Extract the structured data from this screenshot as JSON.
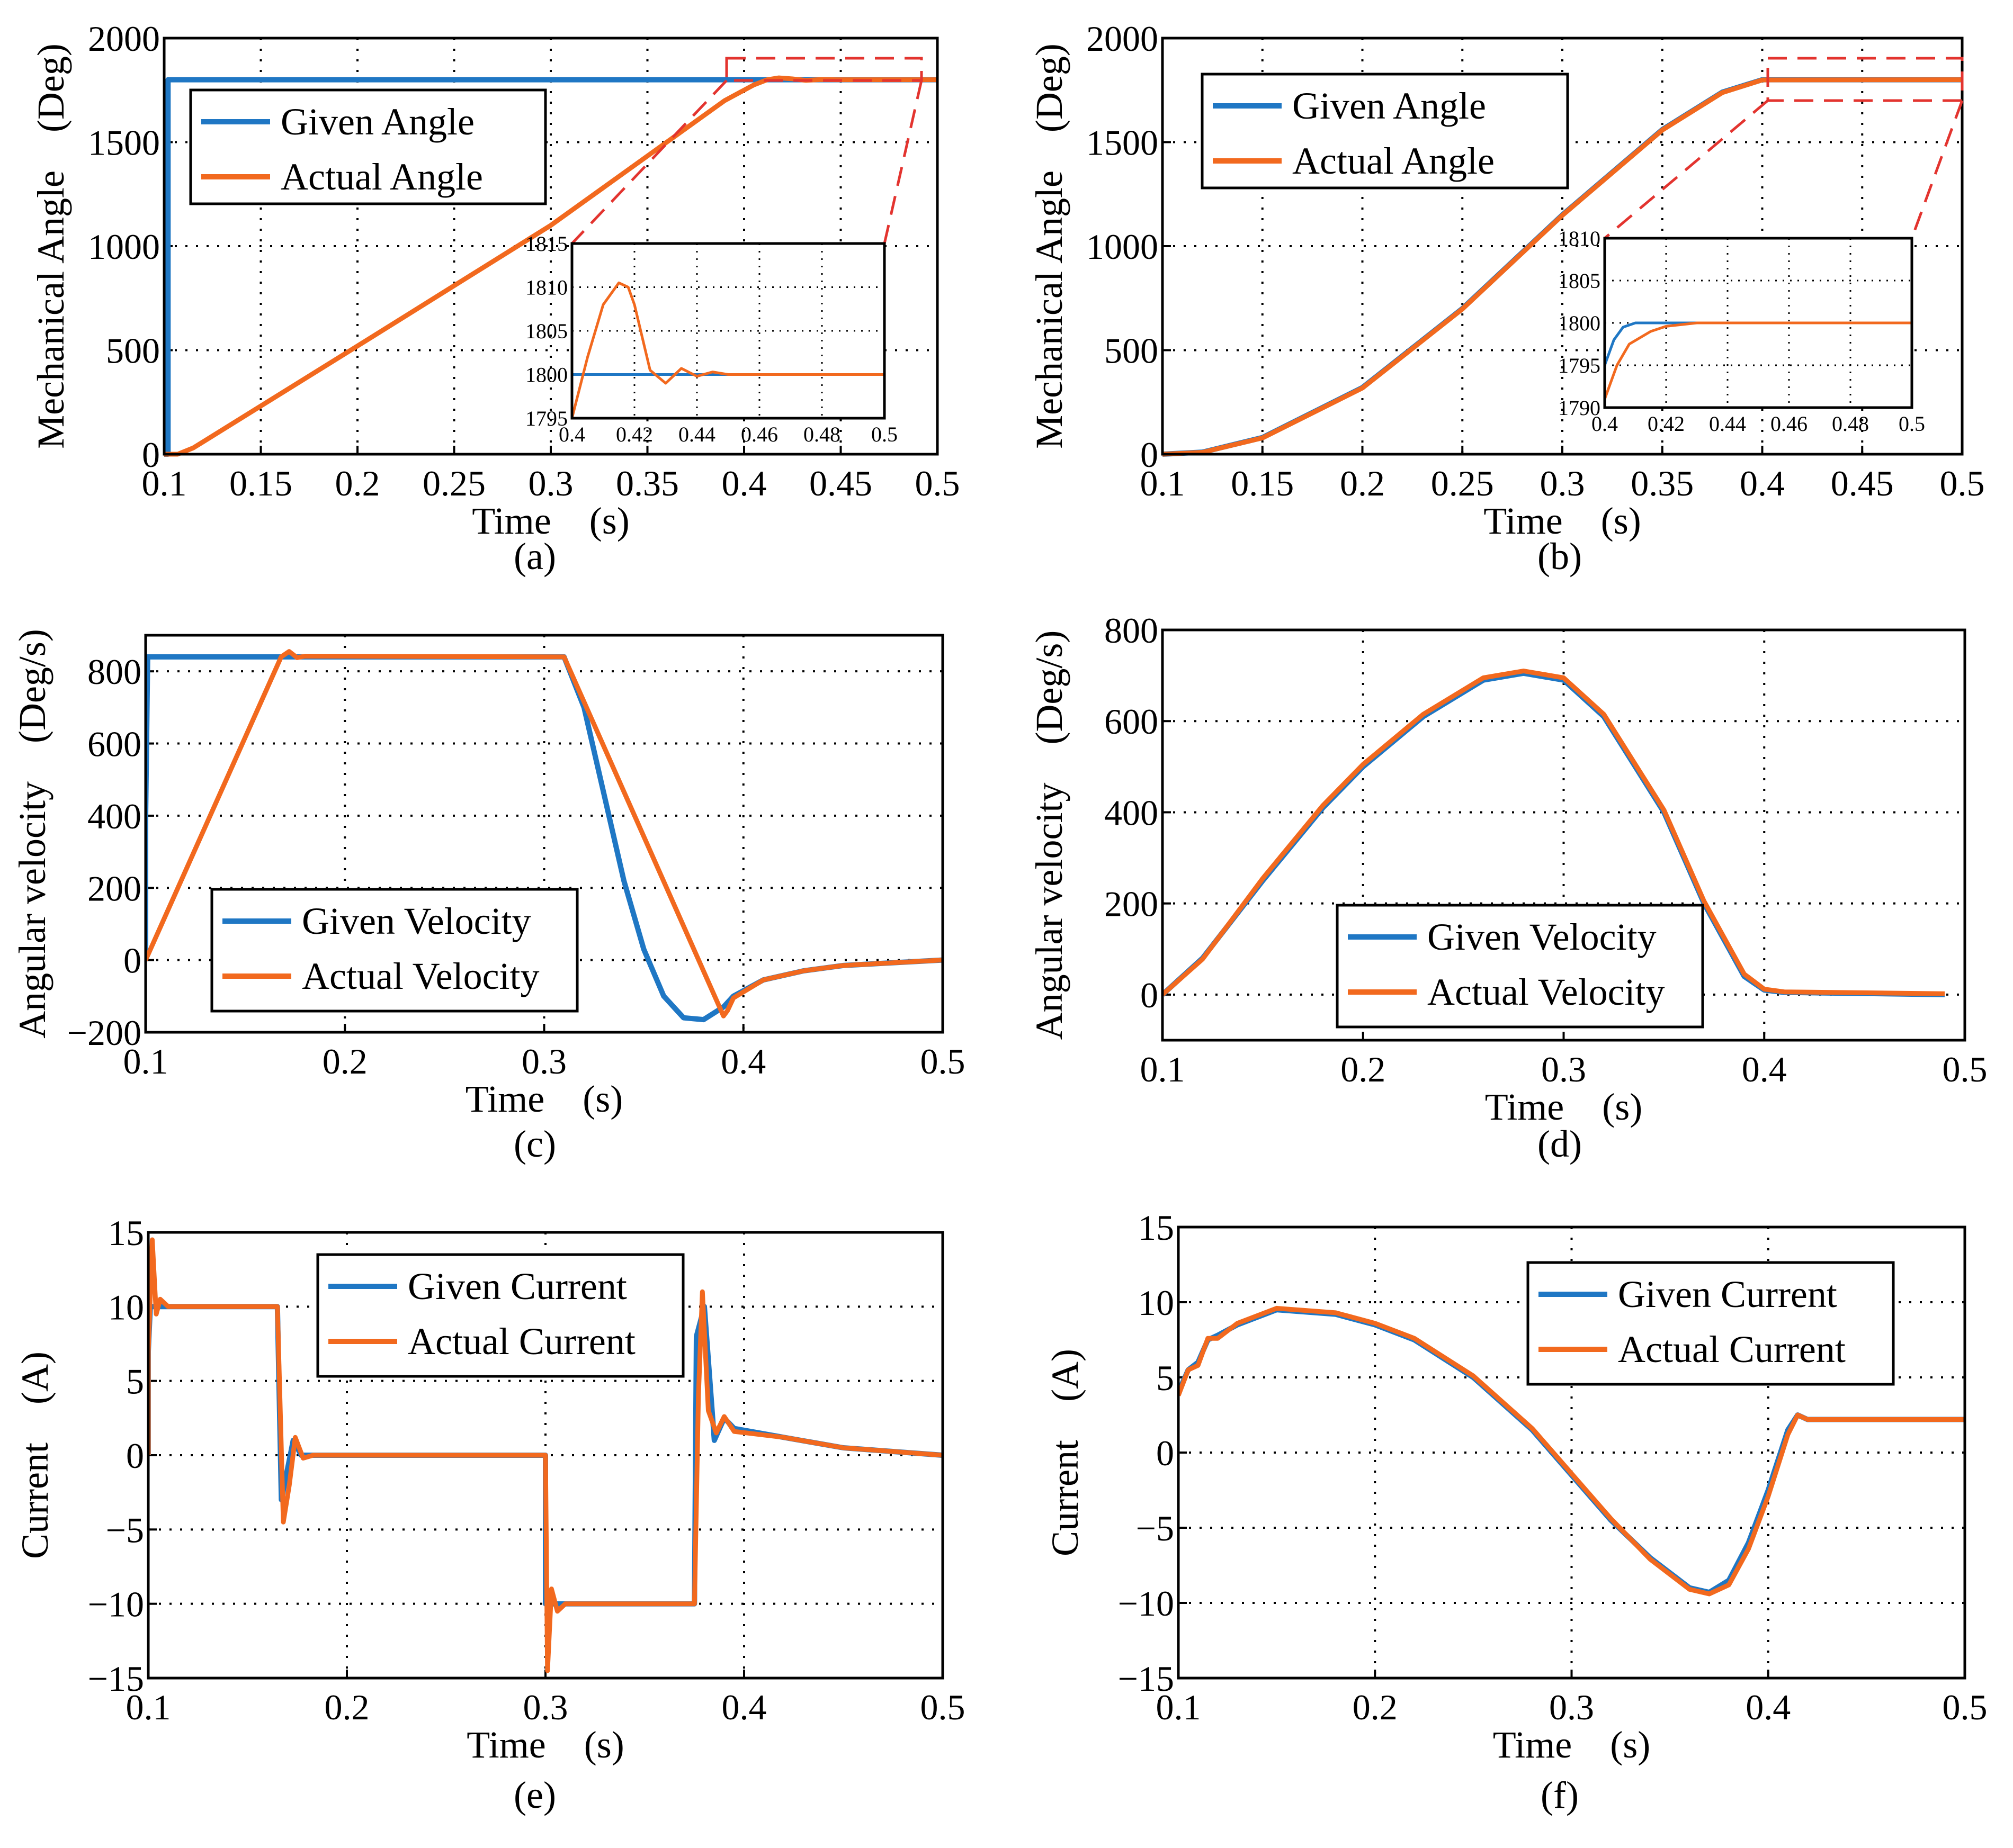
{
  "colors": {
    "given": "#1f77c4",
    "actual": "#f2691e",
    "zoom": "#e3342f"
  },
  "chart_data": [
    {
      "id": "a",
      "type": "line",
      "caption": "(a)",
      "xlabel": "Time　(s)",
      "ylabel": "Mechanical Angle　(Deg)",
      "xlim": [
        0.1,
        0.5
      ],
      "ylim": [
        0,
        2000
      ],
      "xticks": [
        "0.1",
        "0.15",
        "0.2",
        "0.25",
        "0.3",
        "0.35",
        "0.4",
        "0.45",
        "0.5"
      ],
      "yticks": [
        "0",
        "500",
        "1000",
        "1500",
        "2000"
      ],
      "legend": [
        "Given Angle",
        "Actual Angle"
      ],
      "series": [
        {
          "name": "Given Angle",
          "x": [
            0.1,
            0.102,
            0.102,
            0.5
          ],
          "y": [
            0,
            0,
            1800,
            1800
          ]
        },
        {
          "name": "Actual Angle",
          "x": [
            0.1,
            0.107,
            0.115,
            0.2,
            0.3,
            0.39,
            0.405,
            0.412,
            0.418,
            0.425,
            0.432,
            0.44,
            0.448,
            0.5
          ],
          "y": [
            0,
            0,
            30,
            520,
            1100,
            1700,
            1775,
            1800,
            1809,
            1804,
            1797,
            1801,
            1800,
            1800
          ]
        }
      ],
      "inset": {
        "xlim": [
          0.4,
          0.5
        ],
        "ylim": [
          1795,
          1815
        ],
        "xticks": [
          "0.4",
          "0.42",
          "0.44",
          "0.46",
          "0.48",
          "0.5"
        ],
        "yticks": [
          "1795",
          "1800",
          "1805",
          "1810",
          "1815"
        ],
        "series": [
          {
            "name": "Given Angle",
            "x": [
              0.4,
              0.5
            ],
            "y": [
              1800,
              1800
            ]
          },
          {
            "name": "Actual Angle",
            "x": [
              0.4,
              0.405,
              0.41,
              0.415,
              0.418,
              0.42,
              0.425,
              0.43,
              0.435,
              0.44,
              0.445,
              0.45,
              0.5
            ],
            "y": [
              1795,
              1802,
              1808,
              1810.5,
              1810,
              1808,
              1800.5,
              1799,
              1800.7,
              1799.8,
              1800.3,
              1800,
              1800
            ]
          }
        ]
      }
    },
    {
      "id": "b",
      "type": "line",
      "caption": "(b)",
      "xlabel": "Time　(s)",
      "ylabel": "Mechanical Angle　(Deg)",
      "xlim": [
        0.1,
        0.5
      ],
      "ylim": [
        0,
        2000
      ],
      "xticks": [
        "0.1",
        "0.15",
        "0.2",
        "0.25",
        "0.3",
        "0.35",
        "0.4",
        "0.45",
        "0.5"
      ],
      "yticks": [
        "0",
        "500",
        "1000",
        "1500",
        "2000"
      ],
      "legend": [
        "Given Angle",
        "Actual Angle"
      ],
      "series": [
        {
          "name": "Given Angle",
          "x": [
            0.1,
            0.12,
            0.15,
            0.2,
            0.25,
            0.3,
            0.35,
            0.38,
            0.4,
            0.5
          ],
          "y": [
            0,
            10,
            80,
            320,
            700,
            1150,
            1560,
            1740,
            1800,
            1800
          ]
        },
        {
          "name": "Actual Angle",
          "x": [
            0.1,
            0.12,
            0.15,
            0.2,
            0.25,
            0.3,
            0.35,
            0.38,
            0.4,
            0.5
          ],
          "y": [
            0,
            9,
            78,
            318,
            698,
            1148,
            1558,
            1738,
            1799,
            1800
          ]
        }
      ],
      "inset": {
        "xlim": [
          0.4,
          0.5
        ],
        "ylim": [
          1790,
          1810
        ],
        "xticks": [
          "0.4",
          "0.42",
          "0.44",
          "0.46",
          "0.48",
          "0.5"
        ],
        "yticks": [
          "1790",
          "1795",
          "1800",
          "1805",
          "1810"
        ],
        "series": [
          {
            "name": "Given Angle",
            "x": [
              0.4,
              0.403,
              0.406,
              0.41,
              0.415,
              0.5
            ],
            "y": [
              1795,
              1798,
              1799.5,
              1800,
              1800,
              1800
            ]
          },
          {
            "name": "Actual Angle",
            "x": [
              0.4,
              0.404,
              0.408,
              0.415,
              0.42,
              0.43,
              0.5
            ],
            "y": [
              1791,
              1795,
              1797.5,
              1799,
              1799.6,
              1800,
              1800
            ]
          }
        ]
      }
    },
    {
      "id": "c",
      "type": "line",
      "caption": "(c)",
      "xlabel": "Time　(s)",
      "ylabel": "Angular velocity　(Deg/s)",
      "xlim": [
        0.1,
        0.5
      ],
      "ylim": [
        -200,
        900
      ],
      "xticks": [
        "0.1",
        "0.2",
        "0.3",
        "0.4",
        "0.5"
      ],
      "yticks": [
        "-200",
        "0",
        "200",
        "400",
        "600",
        "800"
      ],
      "legend": [
        "Given Velocity",
        "Actual Velocity"
      ],
      "series": [
        {
          "name": "Given Velocity",
          "x": [
            0.1,
            0.1,
            0.101,
            0.31,
            0.32,
            0.33,
            0.34,
            0.35,
            0.36,
            0.37,
            0.38,
            0.39,
            0.395,
            0.41,
            0.43,
            0.45,
            0.5
          ],
          "y": [
            0,
            400,
            840,
            840,
            700,
            460,
            220,
            30,
            -100,
            -160,
            -165,
            -130,
            -100,
            -55,
            -30,
            -15,
            0
          ]
        },
        {
          "name": "Actual Velocity",
          "x": [
            0.1,
            0.168,
            0.172,
            0.176,
            0.18,
            0.31,
            0.39,
            0.392,
            0.395,
            0.41,
            0.43,
            0.45,
            0.5
          ],
          "y": [
            0,
            840,
            855,
            838,
            842,
            840,
            -155,
            -140,
            -105,
            -55,
            -30,
            -15,
            0
          ]
        }
      ]
    },
    {
      "id": "d",
      "type": "line",
      "caption": "(d)",
      "xlabel": "Time　(s)",
      "ylabel": "Angular velocity　(Deg/s)",
      "xlim": [
        0.1,
        0.5
      ],
      "ylim": [
        -100,
        800
      ],
      "xticks": [
        "0.1",
        "0.2",
        "0.3",
        "0.4",
        "0.5"
      ],
      "yticks": [
        "0",
        "200",
        "400",
        "600",
        "800"
      ],
      "legend": [
        "Given Velocity",
        "Actual Velocity"
      ],
      "series": [
        {
          "name": "Given Velocity",
          "x": [
            0.1,
            0.12,
            0.15,
            0.18,
            0.2,
            0.23,
            0.26,
            0.28,
            0.3,
            0.32,
            0.35,
            0.37,
            0.39,
            0.4,
            0.41,
            0.49
          ],
          "y": [
            0,
            80,
            250,
            410,
            500,
            610,
            690,
            705,
            690,
            610,
            400,
            200,
            40,
            10,
            5,
            0
          ]
        },
        {
          "name": "Actual Velocity",
          "x": [
            0.1,
            0.12,
            0.15,
            0.18,
            0.2,
            0.23,
            0.26,
            0.28,
            0.3,
            0.32,
            0.35,
            0.37,
            0.39,
            0.4,
            0.41,
            0.49
          ],
          "y": [
            0,
            78,
            255,
            415,
            505,
            615,
            695,
            710,
            695,
            615,
            405,
            205,
            45,
            12,
            6,
            2
          ]
        }
      ]
    },
    {
      "id": "e",
      "type": "line",
      "caption": "(e)",
      "xlabel": "Time　(s)",
      "ylabel": "Current　(A)",
      "xlim": [
        0.1,
        0.5
      ],
      "ylim": [
        -15,
        15
      ],
      "xticks": [
        "0.1",
        "0.2",
        "0.3",
        "0.4",
        "0.5"
      ],
      "yticks": [
        "-15",
        "-10",
        "-5",
        "0",
        "5",
        "10",
        "15"
      ],
      "legend": [
        "Given Current",
        "Actual Current"
      ],
      "series": [
        {
          "name": "Given Current",
          "x": [
            0.1,
            0.1,
            0.101,
            0.165,
            0.167,
            0.17,
            0.173,
            0.177,
            0.182,
            0.3,
            0.3,
            0.375,
            0.376,
            0.38,
            0.385,
            0.39,
            0.395,
            0.42,
            0.45,
            0.5
          ],
          "y": [
            0,
            7,
            10,
            10,
            -3,
            -1,
            1,
            0,
            0,
            0,
            -10,
            -10,
            8,
            10,
            1,
            2.5,
            1.8,
            1.2,
            0.5,
            0
          ]
        },
        {
          "name": "Actual Current",
          "x": [
            0.1,
            0.1,
            0.102,
            0.104,
            0.106,
            0.11,
            0.165,
            0.168,
            0.171,
            0.174,
            0.178,
            0.183,
            0.3,
            0.301,
            0.303,
            0.306,
            0.31,
            0.375,
            0.377,
            0.379,
            0.382,
            0.386,
            0.39,
            0.395,
            0.42,
            0.45,
            0.5
          ],
          "y": [
            0,
            7,
            14.5,
            9.5,
            10.5,
            10,
            10,
            -4.5,
            -2,
            1.2,
            -0.2,
            0,
            0,
            -14.5,
            -9,
            -10.5,
            -10,
            -10,
            4,
            11,
            3,
            1.5,
            2.6,
            1.6,
            1.2,
            0.5,
            0
          ]
        }
      ]
    },
    {
      "id": "f",
      "type": "line",
      "caption": "(f)",
      "xlabel": "Time　(s)",
      "ylabel": "Current　(A)",
      "xlim": [
        0.1,
        0.5
      ],
      "ylim": [
        -15,
        15
      ],
      "xticks": [
        "0.1",
        "0.2",
        "0.3",
        "0.4",
        "0.5"
      ],
      "yticks": [
        "-15",
        "-10",
        "-5",
        "0",
        "5",
        "10",
        "15"
      ],
      "legend": [
        "Given Current",
        "Actual Current"
      ],
      "series": [
        {
          "name": "Given Current",
          "x": [
            0.1,
            0.105,
            0.11,
            0.115,
            0.12,
            0.13,
            0.15,
            0.18,
            0.2,
            0.22,
            0.25,
            0.28,
            0.3,
            0.32,
            0.34,
            0.36,
            0.37,
            0.38,
            0.39,
            0.4,
            0.41,
            0.415,
            0.42,
            0.5
          ],
          "y": [
            4,
            5.5,
            6,
            7.5,
            7.8,
            8.5,
            9.5,
            9.2,
            8.5,
            7.5,
            5,
            1.5,
            -1.5,
            -4.5,
            -7,
            -9,
            -9.3,
            -8.5,
            -6,
            -2.5,
            1.5,
            2.5,
            2.2,
            2.2
          ]
        },
        {
          "name": "Actual Current",
          "x": [
            0.1,
            0.105,
            0.11,
            0.115,
            0.12,
            0.13,
            0.15,
            0.18,
            0.2,
            0.22,
            0.25,
            0.28,
            0.3,
            0.32,
            0.34,
            0.36,
            0.37,
            0.38,
            0.39,
            0.4,
            0.41,
            0.415,
            0.42,
            0.5
          ],
          "y": [
            3.8,
            5.5,
            5.8,
            7.6,
            7.6,
            8.6,
            9.6,
            9.3,
            8.6,
            7.6,
            5.1,
            1.6,
            -1.4,
            -4.4,
            -7.1,
            -9.1,
            -9.4,
            -8.8,
            -6.4,
            -2.9,
            1.2,
            2.5,
            2.2,
            2.2
          ]
        }
      ]
    }
  ]
}
